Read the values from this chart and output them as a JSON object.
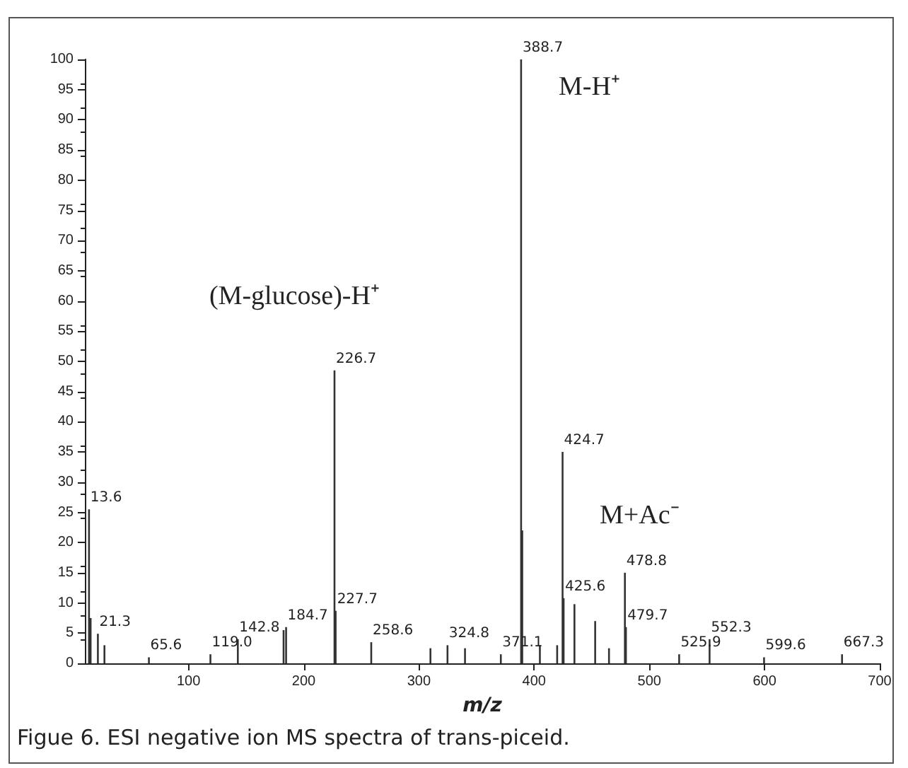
{
  "chart_data": {
    "type": "bar",
    "xlabel": "m/z",
    "x": [
      13.6,
      15,
      21.3,
      27,
      65.6,
      119.0,
      142.8,
      182.5,
      184.7,
      226.7,
      227.7,
      258.6,
      310,
      324.8,
      340,
      371.1,
      388.7,
      389.7,
      405,
      420,
      424.7,
      425.6,
      435,
      453,
      465,
      478.8,
      479.7,
      525.9,
      552.3,
      599.6,
      667.3
    ],
    "values": [
      25.5,
      7.5,
      4.9,
      3,
      1,
      1.5,
      4,
      5.5,
      6,
      48.5,
      8.7,
      3.5,
      2.5,
      3,
      2.5,
      1.5,
      100,
      22,
      3,
      3,
      35,
      10.8,
      9.8,
      7,
      2.5,
      15,
      6,
      1.5,
      4,
      1,
      1.5
    ],
    "color": "#333333",
    "xlim": [
      10,
      700
    ],
    "xticks": [
      100,
      200,
      300,
      400,
      500,
      600,
      700
    ],
    "ylim": [
      0,
      100
    ],
    "yticks": [
      0,
      5,
      10,
      15,
      20,
      25,
      30,
      35,
      40,
      45,
      50,
      55,
      60,
      65,
      70,
      75,
      80,
      85,
      90,
      95,
      100
    ],
    "annotations": [
      {
        "text": "13.6",
        "x": 13.6,
        "y": 25.5
      },
      {
        "text": "21.3",
        "x": 21.3,
        "y": 4.9
      },
      {
        "text": "65.6",
        "x": 65.6,
        "y": 1
      },
      {
        "text": "119.0",
        "x": 119.0,
        "y": 1.5
      },
      {
        "text": "142.8",
        "x": 142.8,
        "y": 4
      },
      {
        "text": "184.7",
        "x": 184.7,
        "y": 6
      },
      {
        "text": "226.7",
        "x": 226.7,
        "y": 48.5
      },
      {
        "text": "227.7",
        "x": 227.7,
        "y": 8.7
      },
      {
        "text": "258.6",
        "x": 258.6,
        "y": 3.5
      },
      {
        "text": "324.8",
        "x": 324.8,
        "y": 3
      },
      {
        "text": "371.1",
        "x": 371.1,
        "y": 1.5
      },
      {
        "text": "388.7",
        "x": 388.7,
        "y": 100
      },
      {
        "text": "424.7",
        "x": 424.7,
        "y": 35
      },
      {
        "text": "425.6",
        "x": 425.6,
        "y": 10.8
      },
      {
        "text": "478.8",
        "x": 478.8,
        "y": 15
      },
      {
        "text": "479.7",
        "x": 479.7,
        "y": 6
      },
      {
        "text": "525.9",
        "x": 525.9,
        "y": 1.5
      },
      {
        "text": "552.3",
        "x": 552.3,
        "y": 4
      },
      {
        "text": "599.6",
        "x": 599.6,
        "y": 1
      },
      {
        "text": "667.3",
        "x": 667.3,
        "y": 1.5
      },
      "M-H⁺",
      "(M-glucose)-H⁺",
      "M+Ac⁻",
      "Figue 6. ESI negative ion MS spectra of trans-piceid."
    ]
  }
}
